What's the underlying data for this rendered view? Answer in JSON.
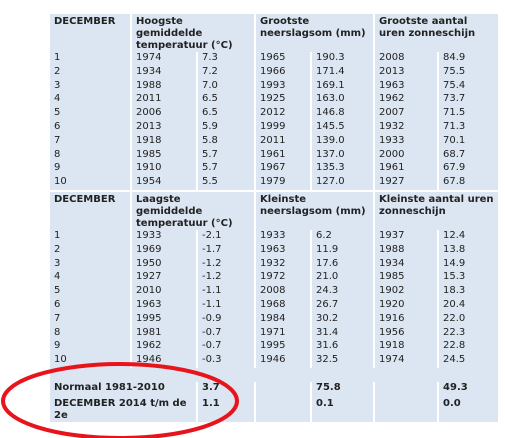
{
  "table1": {
    "headers": [
      "DECEMBER",
      "Hoogste gemiddelde temperatuur (°C)",
      "Grootste neerslagsom (mm)",
      "Grootste aantal uren zonneschijn"
    ],
    "rows": [
      [
        "1",
        "1974",
        "7.3",
        "1965",
        "190.3",
        "2008",
        "84.9"
      ],
      [
        "2",
        "1934",
        "7.2",
        "1966",
        "171.4",
        "2013",
        "75.5"
      ],
      [
        "3",
        "1988",
        "7.0",
        "1993",
        "169.1",
        "1963",
        "75.4"
      ],
      [
        "4",
        "2011",
        "6.5",
        "1925",
        "163.0",
        "1962",
        "73.7"
      ],
      [
        "5",
        "2006",
        "6.5",
        "2012",
        "146.8",
        "2007",
        "71.5"
      ],
      [
        "6",
        "2013",
        "5.9",
        "1999",
        "145.5",
        "1932",
        "71.3"
      ],
      [
        "7",
        "1918",
        "5.8",
        "2011",
        "139.0",
        "1933",
        "70.1"
      ],
      [
        "8",
        "1985",
        "5.7",
        "1961",
        "137.0",
        "2000",
        "68.7"
      ],
      [
        "9",
        "1910",
        "5.7",
        "1967",
        "135.3",
        "1961",
        "67.9"
      ],
      [
        "10",
        "1954",
        "5.5",
        "1979",
        "127.0",
        "1927",
        "67.8"
      ]
    ]
  },
  "table2": {
    "headers": [
      "DECEMBER",
      "Laagste gemiddelde temperatuur (°C)",
      "Kleinste neerslagsom (mm)",
      "Kleinste aantal uren zonneschijn"
    ],
    "rows": [
      [
        "1",
        "1933",
        "-2.1",
        "1933",
        "6.2",
        "1937",
        "12.4"
      ],
      [
        "2",
        "1969",
        "-1.7",
        "1963",
        "11.9",
        "1988",
        "13.8"
      ],
      [
        "3",
        "1950",
        "-1.2",
        "1932",
        "17.6",
        "1934",
        "14.9"
      ],
      [
        "4",
        "1927",
        "-1.2",
        "1972",
        "21.0",
        "1985",
        "15.3"
      ],
      [
        "5",
        "2010",
        "-1.1",
        "2008",
        "24.3",
        "1902",
        "18.3"
      ],
      [
        "6",
        "1963",
        "-1.1",
        "1968",
        "26.7",
        "1920",
        "20.4"
      ],
      [
        "7",
        "1995",
        "-0.9",
        "1984",
        "30.2",
        "1916",
        "22.0"
      ],
      [
        "8",
        "1981",
        "-0.7",
        "1971",
        "31.4",
        "1956",
        "22.3"
      ],
      [
        "9",
        "1962",
        "-0.7",
        "1995",
        "31.6",
        "1918",
        "22.8"
      ],
      [
        "10",
        "1946",
        "-0.3",
        "1946",
        "32.5",
        "1974",
        "24.5"
      ]
    ]
  },
  "summary": [
    [
      "Normaal 1981-2010",
      "3.7",
      "75.8",
      "49.3"
    ],
    [
      "DECEMBER 2014 t/m de 2e",
      "1.1",
      "0.1",
      "0.0"
    ]
  ]
}
